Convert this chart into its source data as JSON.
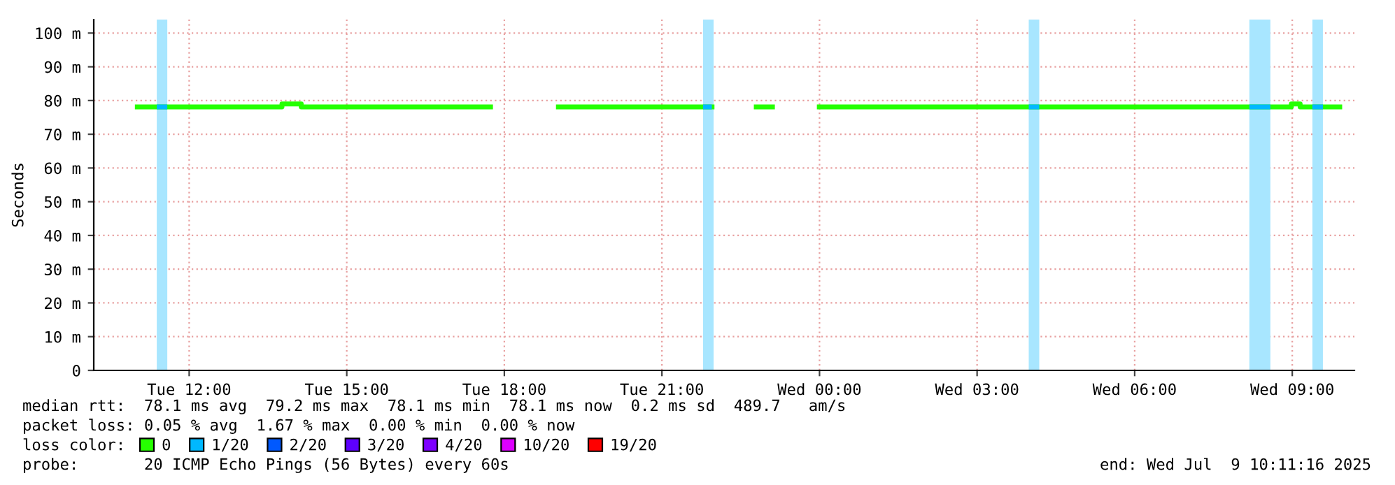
{
  "chart_data": {
    "type": "line",
    "ylabel": "Seconds",
    "legend_title": "loss color:",
    "xlim": [
      "2025-07-08T10:11",
      "2025-07-09T10:11"
    ],
    "xticks": [
      {
        "value": "2025-07-08T12:00",
        "label": "Tue 12:00"
      },
      {
        "value": "2025-07-08T15:00",
        "label": "Tue 15:00"
      },
      {
        "value": "2025-07-08T18:00",
        "label": "Tue 18:00"
      },
      {
        "value": "2025-07-08T21:00",
        "label": "Tue 21:00"
      },
      {
        "value": "2025-07-09T00:00",
        "label": "Wed 00:00"
      },
      {
        "value": "2025-07-09T03:00",
        "label": "Wed 03:00"
      },
      {
        "value": "2025-07-09T06:00",
        "label": "Wed 06:00"
      },
      {
        "value": "2025-07-09T09:00",
        "label": "Wed 09:00"
      }
    ],
    "ylim": [
      0,
      104
    ],
    "yticks": [
      0,
      {
        "value": 10,
        "label": "10 m"
      },
      {
        "value": 20,
        "label": "20 m"
      },
      {
        "value": 30,
        "label": "30 m"
      },
      {
        "value": 40,
        "label": "40 m"
      },
      {
        "value": 50,
        "label": "50 m"
      },
      {
        "value": 60,
        "label": "60 m"
      },
      {
        "value": 70,
        "label": "70 m"
      },
      {
        "value": 80,
        "label": "80 m"
      },
      {
        "value": 90,
        "label": "90 m"
      },
      {
        "value": 100,
        "label": "100 m"
      }
    ],
    "grid": true,
    "legend": "bottom",
    "series": [
      {
        "name": "0",
        "color": "#26ff00",
        "x": [
          "2025-07-08T10:58",
          "2025-07-08T13:46",
          "2025-07-08T13:46",
          "2025-07-08T14:08",
          "2025-07-08T14:08",
          "2025-07-08T17:47",
          "2025-07-08T17:48",
          "2025-07-08T18:59",
          "2025-07-08T22:00",
          "2025-07-08T22:01",
          "2025-07-08T22:45",
          "2025-07-08T23:09",
          "2025-07-08T23:10",
          "2025-07-08T23:57",
          "2025-07-09T08:59",
          "2025-07-09T08:59",
          "2025-07-09T09:09",
          "2025-07-09T09:09",
          "2025-07-09T09:57"
        ],
        "values": [
          78.1,
          78.1,
          79,
          79,
          78.1,
          78.1,
          null,
          78.1,
          78.1,
          null,
          78.1,
          78.1,
          null,
          78.1,
          78.1,
          79,
          79,
          78.1,
          78.1
        ]
      },
      {
        "name": "1/20",
        "color": "#00b8ff",
        "x": [
          "2025-07-08T11:23",
          "2025-07-08T11:35",
          "2025-07-08T11:36",
          "2025-07-08T21:47",
          "2025-07-08T21:57",
          "2025-07-08T21:58",
          "2025-07-09T03:59",
          "2025-07-09T04:11",
          "2025-07-09T04:12",
          "2025-07-09T08:11",
          "2025-07-09T08:35",
          "2025-07-09T08:36",
          "2025-07-09T09:23",
          "2025-07-09T09:35"
        ],
        "values": [
          78.1,
          78.1,
          null,
          78.1,
          78.1,
          null,
          78.1,
          78.1,
          null,
          78.1,
          78.1,
          null,
          78.1,
          78.1
        ]
      },
      {
        "name": "2/20",
        "color": "#0059ff"
      },
      {
        "name": "3/20",
        "color": "#5e00ff"
      },
      {
        "name": "4/20",
        "color": "#7e00ff"
      },
      {
        "name": "10/20",
        "color": "#dd00ff"
      },
      {
        "name": "19/20",
        "color": "#ff0000"
      }
    ],
    "bands": [
      {
        "axis": "x",
        "from": "2025-07-08T11:23",
        "to": "2025-07-08T11:35",
        "color": "#a8e6ff"
      },
      {
        "axis": "x",
        "from": "2025-07-08T21:47",
        "to": "2025-07-08T21:59",
        "color": "#a8e6ff"
      },
      {
        "axis": "x",
        "from": "2025-07-09T03:59",
        "to": "2025-07-09T04:11",
        "color": "#a8e6ff"
      },
      {
        "axis": "x",
        "from": "2025-07-09T08:11",
        "to": "2025-07-09T08:35",
        "color": "#a8e6ff"
      },
      {
        "axis": "x",
        "from": "2025-07-09T09:23",
        "to": "2025-07-09T09:35",
        "color": "#a8e6ff"
      }
    ],
    "annotations": [
      "median rtt:  78.1 ms avg  79.2 ms max  78.1 ms min  78.1 ms now  0.2 ms sd  489.7   am/s",
      "packet loss: 0.05 % avg  1.67 % max  0.00 % min  0.00 % now",
      "probe:       20 ICMP Echo Pings (56 Bytes) every 60s",
      "end: Wed Jul  9 10:11:16 2025"
    ]
  }
}
